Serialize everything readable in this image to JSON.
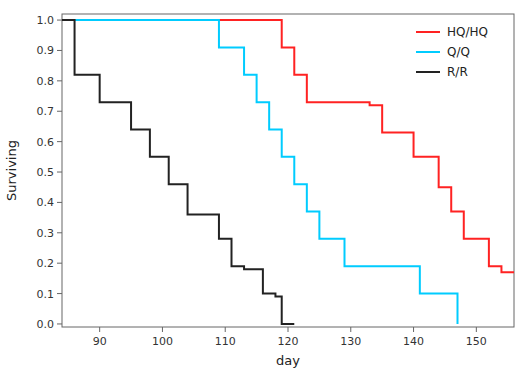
{
  "chart_data": {
    "type": "step",
    "title": "",
    "xlabel": "day",
    "ylabel": "Surviving",
    "xlim": [
      84,
      156
    ],
    "ylim": [
      -0.01,
      1.02
    ],
    "xticks": [
      90,
      100,
      110,
      120,
      130,
      140,
      150
    ],
    "yticks": [
      {
        "value": 0.0,
        "label": "0.0"
      },
      0.1,
      0.2,
      0.3,
      0.4,
      0.5,
      0.6,
      0.7,
      0.8,
      0.9,
      {
        "value": 1.0,
        "label": "1.0"
      }
    ],
    "grid": false,
    "legend": "upper right",
    "series": [
      {
        "name": "HQ/HQ",
        "color": "#ff2222",
        "x": [
          84,
          117,
          119,
          121,
          123,
          125,
          131,
          133,
          135,
          138,
          140,
          142,
          144,
          146,
          148,
          150,
          152,
          154,
          156
        ],
        "values": [
          1.0,
          1.0,
          0.91,
          0.82,
          0.73,
          0.73,
          0.73,
          0.72,
          0.63,
          0.63,
          0.55,
          0.55,
          0.45,
          0.37,
          0.28,
          0.28,
          0.19,
          0.17,
          0.17
        ]
      },
      {
        "name": "Q/Q",
        "color": "#00ccff",
        "x": [
          84,
          87,
          107,
          109,
          111,
          113,
          115,
          117,
          119,
          121,
          123,
          125,
          127,
          129,
          131,
          136,
          141,
          143,
          146,
          147
        ],
        "values": [
          1.0,
          1.0,
          1.0,
          0.91,
          0.91,
          0.82,
          0.73,
          0.64,
          0.55,
          0.46,
          0.37,
          0.28,
          0.28,
          0.19,
          0.19,
          0.19,
          0.1,
          0.1,
          0.1,
          0.0
        ]
      },
      {
        "name": "R/R",
        "color": "#222222",
        "x": [
          84,
          86,
          88,
          90,
          92,
          95,
          98,
          101,
          104,
          106,
          109,
          111,
          113,
          116,
          118,
          119,
          120,
          121
        ],
        "values": [
          1.0,
          0.82,
          0.82,
          0.73,
          0.73,
          0.64,
          0.55,
          0.46,
          0.36,
          0.36,
          0.28,
          0.19,
          0.18,
          0.1,
          0.09,
          0.0,
          0.0,
          0.0
        ]
      }
    ]
  }
}
